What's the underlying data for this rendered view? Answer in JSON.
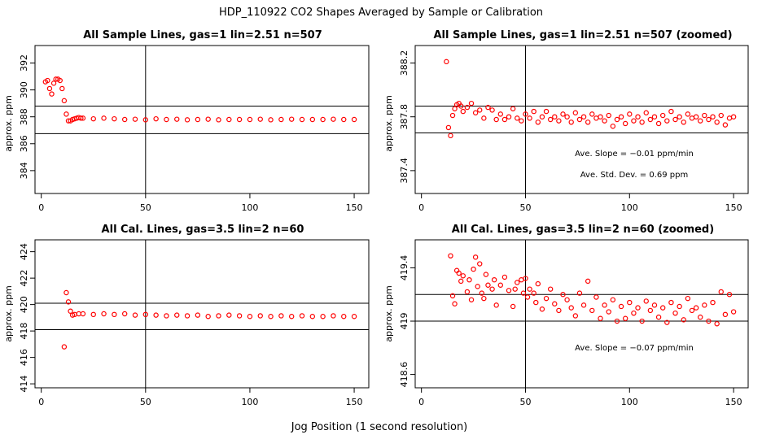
{
  "figure": {
    "title": "HDP_110922  CO2 Shapes Averaged by Sample or Calibration",
    "xlabel": "Jog Position (1 second resolution)"
  },
  "colors": {
    "points": "#ff0000",
    "axis": "#000000",
    "background": "#ffffff"
  },
  "chart_data": [
    {
      "type": "scatter",
      "title": "All Sample Lines, gas=1 lin=2.51 n=507",
      "xlabel": "",
      "ylabel": "approx. ppm",
      "xlim": [
        -3,
        157
      ],
      "ylim": [
        382.3,
        393.3
      ],
      "xticks": [
        0,
        50,
        100,
        150
      ],
      "yticks": [
        384,
        386,
        388,
        390,
        392
      ],
      "vline": 50,
      "hlines": [
        386.75,
        388.8
      ],
      "annotations": [],
      "x": [
        2,
        3,
        4,
        5,
        6,
        7,
        8,
        9,
        10,
        11,
        12,
        13,
        14,
        15,
        16,
        17,
        18,
        19,
        20,
        25,
        30,
        35,
        40,
        45,
        50,
        55,
        60,
        65,
        70,
        75,
        80,
        85,
        90,
        95,
        100,
        105,
        110,
        115,
        120,
        125,
        130,
        135,
        140,
        145,
        150
      ],
      "y": [
        390.6,
        390.7,
        390.1,
        389.7,
        390.5,
        390.8,
        390.8,
        390.7,
        390.1,
        389.2,
        388.2,
        387.7,
        387.7,
        387.8,
        387.85,
        387.9,
        387.95,
        387.9,
        387.9,
        387.85,
        387.9,
        387.85,
        387.8,
        387.82,
        387.78,
        387.85,
        387.8,
        387.82,
        387.78,
        387.8,
        387.82,
        387.78,
        387.8,
        387.8,
        387.8,
        387.82,
        387.78,
        387.8,
        387.82,
        387.8,
        387.8,
        387.8,
        387.82,
        387.8,
        387.8
      ]
    },
    {
      "type": "scatter",
      "title": "All Sample Lines, gas=1 lin=2.51 n=507 (zoomed)",
      "xlabel": "",
      "ylabel": "approx. ppm",
      "xlim": [
        -3,
        157
      ],
      "ylim": [
        387.23,
        388.33
      ],
      "xticks": [
        0,
        50,
        100,
        150
      ],
      "yticks": [
        387.4,
        387.8,
        388.2
      ],
      "vline": 50,
      "hlines": [
        387.68,
        387.88
      ],
      "annotations": [
        "Ave. Slope =  −0.01  ppm/min",
        "Ave. Std. Dev. =  0.69  ppm"
      ],
      "x": [
        12,
        13,
        14,
        15,
        16,
        17,
        18,
        19,
        20,
        22,
        24,
        26,
        28,
        30,
        32,
        34,
        36,
        38,
        40,
        42,
        44,
        46,
        48,
        50,
        52,
        54,
        56,
        58,
        60,
        62,
        64,
        66,
        68,
        70,
        72,
        74,
        76,
        78,
        80,
        82,
        84,
        86,
        88,
        90,
        92,
        94,
        96,
        98,
        100,
        102,
        104,
        106,
        108,
        110,
        112,
        114,
        116,
        118,
        120,
        122,
        124,
        126,
        128,
        130,
        132,
        134,
        136,
        138,
        140,
        142,
        144,
        146,
        148,
        150
      ],
      "y": [
        388.21,
        387.72,
        387.66,
        387.81,
        387.86,
        387.89,
        387.9,
        387.88,
        387.84,
        387.87,
        387.9,
        387.83,
        387.85,
        387.79,
        387.87,
        387.85,
        387.78,
        387.82,
        387.78,
        387.8,
        387.86,
        387.79,
        387.77,
        387.82,
        387.79,
        387.84,
        387.76,
        387.8,
        387.84,
        387.78,
        387.8,
        387.77,
        387.82,
        387.8,
        387.76,
        387.83,
        387.78,
        387.8,
        387.76,
        387.82,
        387.79,
        387.8,
        387.77,
        387.81,
        387.73,
        387.78,
        387.8,
        387.75,
        387.82,
        387.77,
        387.8,
        387.76,
        387.83,
        387.78,
        387.8,
        387.75,
        387.81,
        387.77,
        387.84,
        387.78,
        387.8,
        387.76,
        387.82,
        387.79,
        387.8,
        387.77,
        387.81,
        387.78,
        387.8,
        387.76,
        387.81,
        387.74,
        387.79,
        387.8
      ]
    },
    {
      "type": "scatter",
      "title": "All Cal. Lines, gas=3.5 lin=2 n=60",
      "xlabel": "",
      "ylabel": "approx. ppm",
      "xlim": [
        -3,
        157
      ],
      "ylim": [
        413.7,
        424.9
      ],
      "xticks": [
        0,
        50,
        100,
        150
      ],
      "yticks": [
        414,
        416,
        418,
        420,
        422,
        424
      ],
      "vline": 50,
      "hlines": [
        418.1,
        420.1
      ],
      "annotations": [],
      "x": [
        11,
        12,
        13,
        14,
        15,
        16,
        18,
        20,
        25,
        30,
        35,
        40,
        45,
        50,
        55,
        60,
        65,
        70,
        75,
        80,
        85,
        90,
        95,
        100,
        105,
        110,
        115,
        120,
        125,
        130,
        135,
        140,
        145,
        150
      ],
      "y": [
        416.8,
        420.9,
        420.2,
        419.5,
        419.2,
        419.25,
        419.3,
        419.3,
        419.25,
        419.3,
        419.25,
        419.3,
        419.2,
        419.25,
        419.2,
        419.15,
        419.2,
        419.15,
        419.2,
        419.1,
        419.15,
        419.2,
        419.15,
        419.1,
        419.15,
        419.1,
        419.15,
        419.1,
        419.15,
        419.1,
        419.1,
        419.15,
        419.1,
        419.1
      ]
    },
    {
      "type": "scatter",
      "title": "All Cal. Lines, gas=3.5 lin=2 n=60 (zoomed)",
      "xlabel": "",
      "ylabel": "approx. ppm",
      "xlim": [
        -3,
        157
      ],
      "ylim": [
        418.5,
        419.61
      ],
      "xticks": [
        0,
        50,
        100,
        150
      ],
      "yticks": [
        418.6,
        419.0,
        419.4
      ],
      "vline": 50,
      "hlines": [
        419.0,
        419.2
      ],
      "annotations": [
        "Ave. Slope =  −0.07  ppm/min"
      ],
      "x": [
        14,
        15,
        16,
        17,
        18,
        19,
        20,
        22,
        23,
        24,
        25,
        26,
        27,
        28,
        29,
        30,
        31,
        32,
        34,
        35,
        36,
        38,
        40,
        42,
        44,
        45,
        46,
        48,
        49,
        50,
        51,
        52,
        54,
        55,
        56,
        58,
        60,
        62,
        64,
        66,
        68,
        70,
        72,
        74,
        76,
        78,
        80,
        82,
        84,
        86,
        88,
        90,
        92,
        94,
        96,
        98,
        100,
        102,
        104,
        106,
        108,
        110,
        112,
        114,
        116,
        118,
        120,
        122,
        124,
        126,
        128,
        130,
        132,
        134,
        136,
        138,
        140,
        142,
        144,
        146,
        148,
        150
      ],
      "y": [
        419.49,
        419.19,
        419.13,
        419.38,
        419.36,
        419.3,
        419.34,
        419.22,
        419.31,
        419.16,
        419.39,
        419.48,
        419.26,
        419.43,
        419.21,
        419.17,
        419.35,
        419.27,
        419.24,
        419.31,
        419.12,
        419.27,
        419.33,
        419.23,
        419.11,
        419.24,
        419.29,
        419.31,
        419.21,
        419.32,
        419.18,
        419.24,
        419.21,
        419.14,
        419.28,
        419.09,
        419.17,
        419.24,
        419.13,
        419.08,
        419.2,
        419.16,
        419.1,
        419.04,
        419.21,
        419.12,
        419.3,
        419.08,
        419.18,
        419.02,
        419.12,
        419.07,
        419.16,
        419.0,
        419.11,
        419.02,
        419.14,
        419.06,
        419.1,
        419.0,
        419.15,
        419.08,
        419.12,
        419.03,
        419.1,
        418.99,
        419.14,
        419.06,
        419.11,
        419.01,
        419.17,
        419.08,
        419.1,
        419.03,
        419.12,
        419.0,
        419.14,
        418.98,
        419.22,
        419.05,
        419.2,
        419.07
      ]
    }
  ]
}
